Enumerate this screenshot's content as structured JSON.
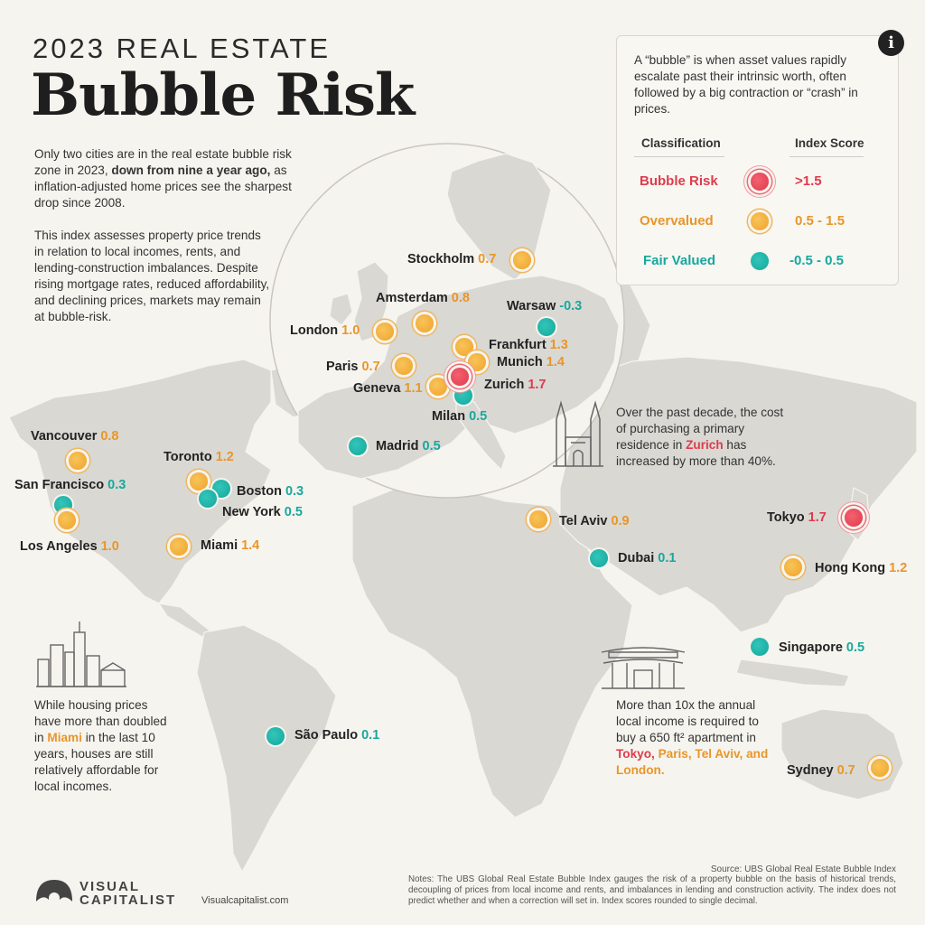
{
  "header": {
    "title_top": "2023 REAL ESTATE",
    "title_main": "Bubble Risk"
  },
  "intro": {
    "p1_a": "Only two cities are in the real estate bubble risk zone in 2023,",
    "p1_b": "down from nine a year ago,",
    "p1_c": "as inflation-adjusted home prices see the sharpest drop since 2008.",
    "p2": "This index assesses property price trends in relation to local incomes, rents, and lending-construction imbalances. Despite rising mortgage rates, reduced affordability, and declining prices, markets may remain at bubble-risk."
  },
  "info_box": {
    "icon": "info-icon",
    "definition": "A “bubble” is when asset values rapidly escalate past their intrinsic worth, often followed by a big contraction or “crash” in prices.",
    "col_classification": "Classification",
    "col_index": "Index Score",
    "rows": [
      {
        "label": "Bubble Risk",
        "range": ">1.5",
        "color": "#df3b4d"
      },
      {
        "label": "Overvalued",
        "range": "0.5 - 1.5",
        "color": "#e8962a"
      },
      {
        "label": "Fair Valued",
        "range": "-0.5 - 0.5",
        "color": "#17a89e"
      }
    ]
  },
  "notes": {
    "zurich_a": "Over the past decade, the cost of purchasing a primary residence in",
    "zurich_city": "Zurich",
    "zurich_b": "has increased by more than 40%.",
    "miami_a": "While housing prices have more than doubled in",
    "miami_city": "Miami",
    "miami_b": "in the last 10 years, houses are still relatively affordable for local incomes.",
    "tokyo_a": "More than 10x the annual local income is required to buy a 650 ft² apartment in",
    "tokyo_c1": "Tokyo",
    "tokyo_c2": "Paris",
    "tokyo_c3": "Tel Aviv,",
    "tokyo_c4": "and London."
  },
  "cities": [
    {
      "name": "Stockholm",
      "score": "0.7",
      "class": "orange"
    },
    {
      "name": "Amsterdam",
      "score": "0.8",
      "class": "orange"
    },
    {
      "name": "Warsaw",
      "score": "-0.3",
      "class": "teal"
    },
    {
      "name": "London",
      "score": "1.0",
      "class": "orange"
    },
    {
      "name": "Frankfurt",
      "score": "1.3",
      "class": "orange"
    },
    {
      "name": "Munich",
      "score": "1.4",
      "class": "orange"
    },
    {
      "name": "Paris",
      "score": "0.7",
      "class": "orange"
    },
    {
      "name": "Geneva",
      "score": "1.1",
      "class": "orange"
    },
    {
      "name": "Zurich",
      "score": "1.7",
      "class": "red"
    },
    {
      "name": "Milan",
      "score": "0.5",
      "class": "teal"
    },
    {
      "name": "Madrid",
      "score": "0.5",
      "class": "teal"
    },
    {
      "name": "Vancouver",
      "score": "0.8",
      "class": "orange"
    },
    {
      "name": "Toronto",
      "score": "1.2",
      "class": "orange"
    },
    {
      "name": "San Francisco",
      "score": "0.3",
      "class": "teal"
    },
    {
      "name": "Boston",
      "score": "0.3",
      "class": "teal"
    },
    {
      "name": "New York",
      "score": "0.5",
      "class": "teal"
    },
    {
      "name": "Los Angeles",
      "score": "1.0",
      "class": "orange"
    },
    {
      "name": "Miami",
      "score": "1.4",
      "class": "orange"
    },
    {
      "name": "Tel Aviv",
      "score": "0.9",
      "class": "orange"
    },
    {
      "name": "Tokyo",
      "score": "1.7",
      "class": "red"
    },
    {
      "name": "Dubai",
      "score": "0.1",
      "class": "teal"
    },
    {
      "name": "Hong Kong",
      "score": "1.2",
      "class": "orange"
    },
    {
      "name": "Singapore",
      "score": "0.5",
      "class": "teal"
    },
    {
      "name": "São Paulo",
      "score": "0.1",
      "class": "teal"
    },
    {
      "name": "Sydney",
      "score": "0.7",
      "class": "orange"
    }
  ],
  "colors": {
    "red": "#df3b4d",
    "orange": "#e8962a",
    "teal": "#17a89e"
  },
  "footer": {
    "source": "Source: UBS Global Real Estate Bubble Index",
    "notes": "Notes: The UBS Global Real Estate Bubble Index gauges the risk of a property bubble on the basis of historical trends, decoupling of prices from local income and rents, and imbalances in lending and construction activity. The index does not predict whether and when a correction will set in. Index scores rounded to single decimal.",
    "logo_line1": "VISUAL",
    "logo_line2": "CAPITALIST",
    "site": "Visualcapitalist.com"
  }
}
